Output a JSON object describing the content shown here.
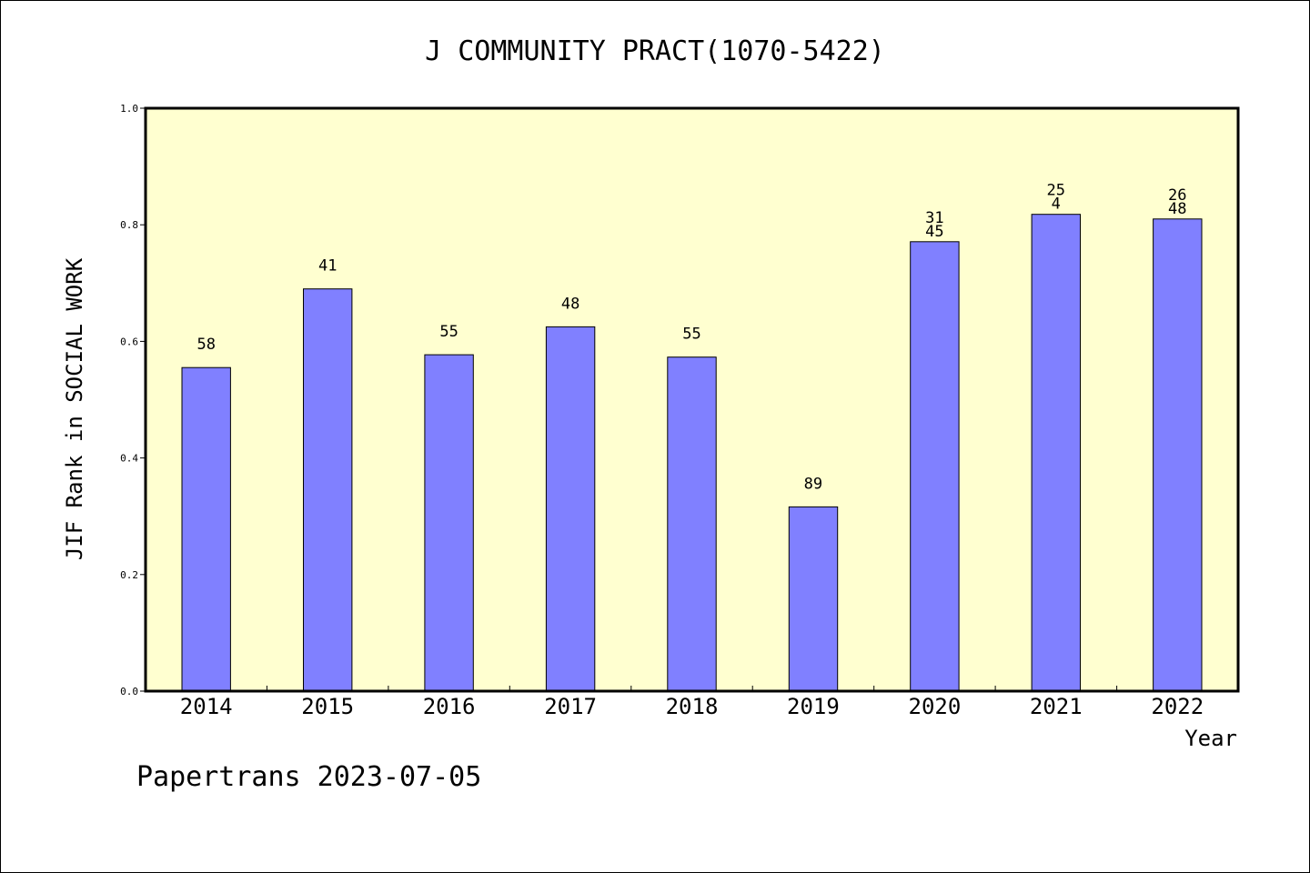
{
  "chart_data": {
    "type": "bar",
    "title": "J COMMUNITY PRACT(1070-5422)",
    "xlabel": "Year",
    "ylabel": "JIF Rank in SOCIAL WORK",
    "ylim": [
      0,
      1.0
    ],
    "yticks": [
      "0.0",
      "0.2",
      "0.4",
      "0.6",
      "0.8",
      "1.0"
    ],
    "categories": [
      "2014",
      "2015",
      "2016",
      "2017",
      "2018",
      "2019",
      "2020",
      "2021",
      "2022"
    ],
    "values": [
      0.555,
      0.69,
      0.577,
      0.625,
      0.573,
      0.316,
      0.771,
      0.818,
      0.81
    ],
    "label_top": [
      "",
      "",
      "",
      "",
      "",
      "",
      "31",
      "25",
      "26"
    ],
    "label_bottom": [
      "58",
      "41",
      "55",
      "48",
      "55",
      "89",
      "45",
      "4",
      "48"
    ],
    "grid": false,
    "legend": "none"
  },
  "footer": "Papertrans 2023-07-05",
  "colors": {
    "plot_bg": "#ffffd0",
    "bar_fill": "#8080ff",
    "bar_stroke": "#000000",
    "axis": "#000000"
  }
}
